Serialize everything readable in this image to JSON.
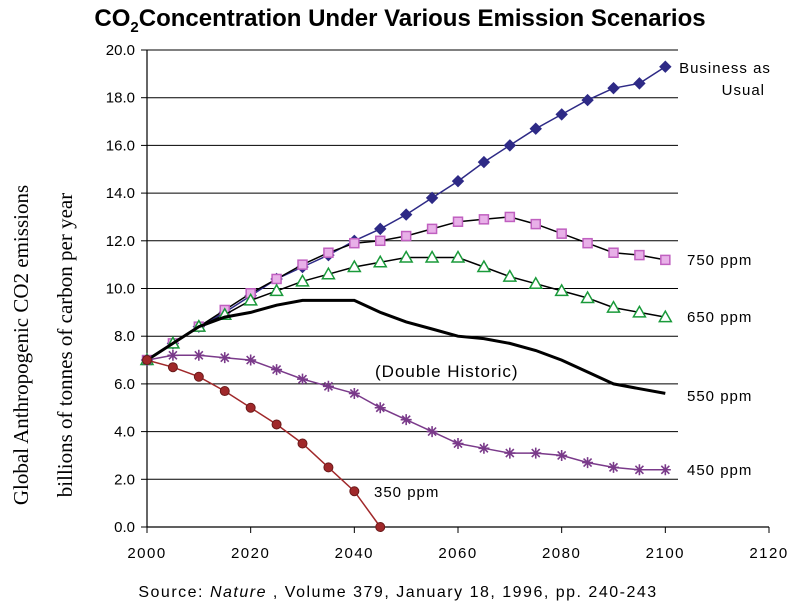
{
  "title_main": "CO",
  "title_sub": "2",
  "title_rest": "Concentration Under Various Emission Scenarios",
  "ylabel_line1": "Global Anthropogenic CO2 emissions",
  "ylabel_line2": "billions of tonnes of carbon per year",
  "source_prefix": "Source: ",
  "source_journal": "Nature",
  "source_rest": " , Volume 379, January 18, 1996, pp. 240-243",
  "annotation": "(Double Historic)",
  "chart_data": {
    "type": "line",
    "title": "CO2 Concentration Under Various Emission Scenarios",
    "xlabel": "",
    "ylabel": "Global Anthropogenic CO2 emissions billions of tonnes of carbon per year",
    "xlim": [
      2000,
      2120
    ],
    "ylim": [
      0,
      20
    ],
    "x_ticks": [
      "2000",
      "2020",
      "2040",
      "2060",
      "2080",
      "2100",
      "2120"
    ],
    "y_ticks": [
      "0.0",
      "2.0",
      "4.0",
      "6.0",
      "8.0",
      "10.0",
      "12.0",
      "14.0",
      "16.0",
      "18.0",
      "20.0"
    ],
    "grid": "horizontal",
    "series": [
      {
        "name": "Business as Usual",
        "label_lines": [
          "Business as",
          "Usual"
        ],
        "color": "#2e2a86",
        "marker": "diamond",
        "x": [
          2000,
          2005,
          2010,
          2015,
          2020,
          2025,
          2030,
          2035,
          2040,
          2045,
          2050,
          2055,
          2060,
          2065,
          2070,
          2075,
          2080,
          2085,
          2090,
          2095,
          2100
        ],
        "y": [
          7.0,
          7.7,
          8.4,
          9.0,
          9.7,
          10.4,
          10.9,
          11.4,
          12.0,
          12.5,
          13.1,
          13.8,
          14.5,
          15.3,
          16.0,
          16.7,
          17.3,
          17.9,
          18.4,
          18.6,
          19.3
        ]
      },
      {
        "name": "750 ppm",
        "label_lines": [
          "750 ppm"
        ],
        "color": "#c060c0",
        "marker": "square",
        "x": [
          2000,
          2005,
          2010,
          2015,
          2020,
          2025,
          2030,
          2035,
          2040,
          2045,
          2050,
          2055,
          2060,
          2065,
          2070,
          2075,
          2080,
          2085,
          2090,
          2095,
          2100
        ],
        "y": [
          7.0,
          7.7,
          8.4,
          9.1,
          9.8,
          10.4,
          11.0,
          11.5,
          11.9,
          12.0,
          12.2,
          12.5,
          12.8,
          12.9,
          13.0,
          12.7,
          12.3,
          11.9,
          11.5,
          11.4,
          11.2
        ]
      },
      {
        "name": "650 ppm",
        "label_lines": [
          "650 ppm"
        ],
        "color": "#1a9a3a",
        "marker": "triangle",
        "x": [
          2000,
          2005,
          2010,
          2015,
          2020,
          2025,
          2030,
          2035,
          2040,
          2045,
          2050,
          2055,
          2060,
          2065,
          2070,
          2075,
          2080,
          2085,
          2090,
          2095,
          2100
        ],
        "y": [
          7.0,
          7.7,
          8.4,
          8.9,
          9.5,
          9.9,
          10.3,
          10.6,
          10.9,
          11.1,
          11.3,
          11.3,
          11.3,
          10.9,
          10.5,
          10.2,
          9.9,
          9.6,
          9.2,
          9.0,
          8.8
        ]
      },
      {
        "name": "550 ppm",
        "label_lines": [
          "550 ppm"
        ],
        "color": "#000000",
        "marker": "none",
        "x": [
          2000,
          2005,
          2010,
          2015,
          2020,
          2025,
          2030,
          2035,
          2040,
          2045,
          2050,
          2055,
          2060,
          2065,
          2070,
          2075,
          2080,
          2085,
          2090,
          2095,
          2100
        ],
        "y": [
          7.0,
          7.7,
          8.4,
          8.8,
          9.0,
          9.3,
          9.5,
          9.5,
          9.5,
          9.0,
          8.6,
          8.3,
          8.0,
          7.9,
          7.7,
          7.4,
          7.0,
          6.5,
          6.0,
          5.8,
          5.6
        ]
      },
      {
        "name": "450 ppm",
        "label_lines": [
          "450 ppm"
        ],
        "color": "#7a3a8a",
        "marker": "star",
        "x": [
          2000,
          2005,
          2010,
          2015,
          2020,
          2025,
          2030,
          2035,
          2040,
          2045,
          2050,
          2055,
          2060,
          2065,
          2070,
          2075,
          2080,
          2085,
          2090,
          2095,
          2100
        ],
        "y": [
          7.0,
          7.2,
          7.2,
          7.1,
          7.0,
          6.6,
          6.2,
          5.9,
          5.6,
          5.0,
          4.5,
          4.0,
          3.5,
          3.3,
          3.1,
          3.1,
          3.0,
          2.7,
          2.5,
          2.4,
          2.4
        ]
      },
      {
        "name": "350 ppm",
        "label_lines": [
          "350 ppm"
        ],
        "color": "#a0282a",
        "marker": "circle",
        "x": [
          2000,
          2005,
          2010,
          2015,
          2020,
          2025,
          2030,
          2035,
          2040,
          2045
        ],
        "y": [
          7.0,
          6.7,
          6.3,
          5.7,
          5.0,
          4.3,
          3.5,
          2.5,
          1.5,
          0.0
        ]
      }
    ]
  }
}
